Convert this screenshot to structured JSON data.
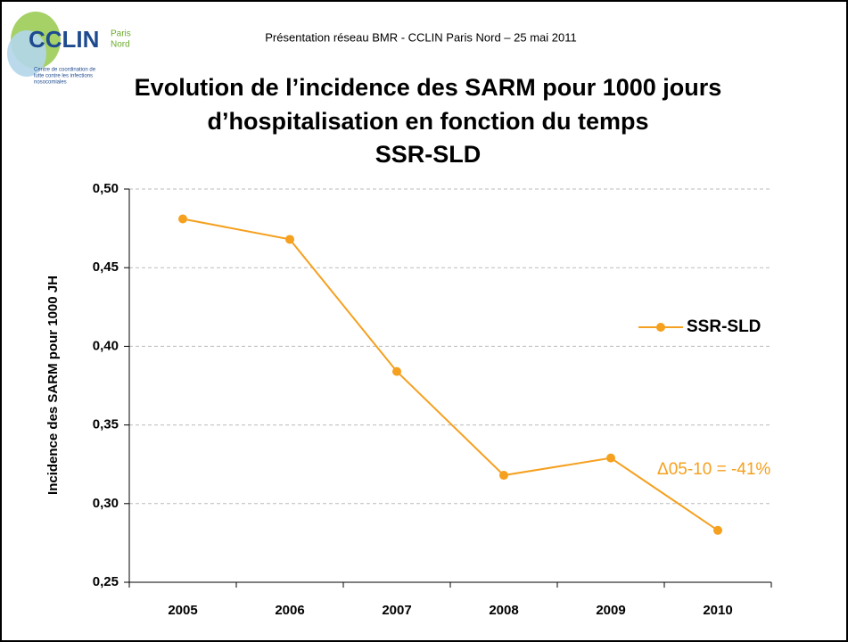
{
  "header": "Présentation réseau BMR - CCLIN Paris Nord – 25 mai 2011",
  "logo": {
    "name": "CCLIN",
    "region_top": "Paris",
    "region_bottom": "Nord",
    "tagline": [
      "Centre de coordination de",
      "lutte contre les infections",
      "nosocomiales"
    ]
  },
  "chart_data": {
    "type": "line",
    "title": [
      "Evolution de l’incidence des SARM pour 1000 jours",
      "d’hospitalisation en fonction du temps",
      "SSR-SLD"
    ],
    "y_label": "Incidence des SARM pour 1000 JH",
    "categories": [
      "2005",
      "2006",
      "2007",
      "2008",
      "2009",
      "2010"
    ],
    "series": [
      {
        "name": "SSR-SLD",
        "color": "#f5a01e",
        "values": [
          0.481,
          0.468,
          0.384,
          0.318,
          0.329,
          0.283
        ]
      }
    ],
    "ylim": [
      0.25,
      0.5
    ],
    "yticks": [
      {
        "value": 0.25,
        "label": "0,25"
      },
      {
        "value": 0.3,
        "label": "0,30"
      },
      {
        "value": 0.35,
        "label": "0,35"
      },
      {
        "value": 0.4,
        "label": "0,40"
      },
      {
        "value": 0.45,
        "label": "0,45"
      },
      {
        "value": 0.5,
        "label": "0,50"
      }
    ],
    "grid": true,
    "legend": "right",
    "annotation": "Δ05-10 = -41%"
  }
}
